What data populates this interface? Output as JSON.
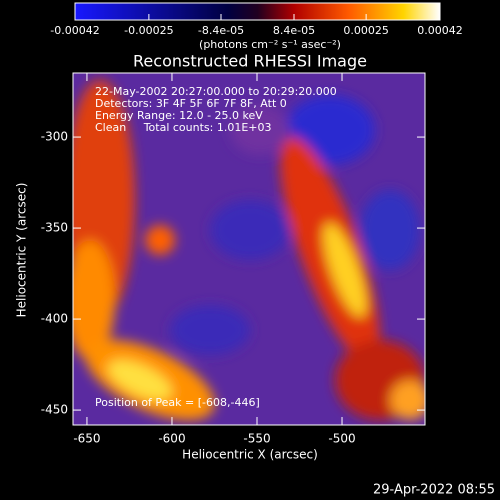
{
  "chart_data": {
    "type": "image",
    "title": "Reconstructed RHESSI Image",
    "x_label": "Heliocentric X (arcsec)",
    "y_label": "Heliocentric Y (arcsec)",
    "xlim": [
      -658.2,
      -451.2
    ],
    "xticks": [
      -650,
      -600,
      -550,
      -500
    ],
    "ylim": [
      -458.2,
      -264.8
    ],
    "yticks": [
      -450,
      -400,
      -350,
      -300
    ],
    "colorbar": {
      "label": "(photons cm⁻² s⁻¹ asec⁻²)",
      "lim": [
        -0.00042,
        0.00042
      ],
      "ticks": [
        -0.00042,
        -0.00025,
        {
          "value": -8.4e-05,
          "label": "-8.4e-05"
        },
        {
          "value": 8.4e-05,
          "label": "8.4e-05"
        },
        0.00025,
        0.00042
      ]
    },
    "annotations": [
      "22-May-2002 20:27:00.000 to 20:29:20.000",
      "Detectors: 3F 4F 5F 6F 7F 8F, Att 0",
      "Energy Range: 12.0 - 25.0 keV",
      "Clean     Total counts: 1.01E+03"
    ],
    "peak_label": "Position of Peak = [-608,-446]",
    "timestamp": "29-Apr-2022 08:55"
  }
}
